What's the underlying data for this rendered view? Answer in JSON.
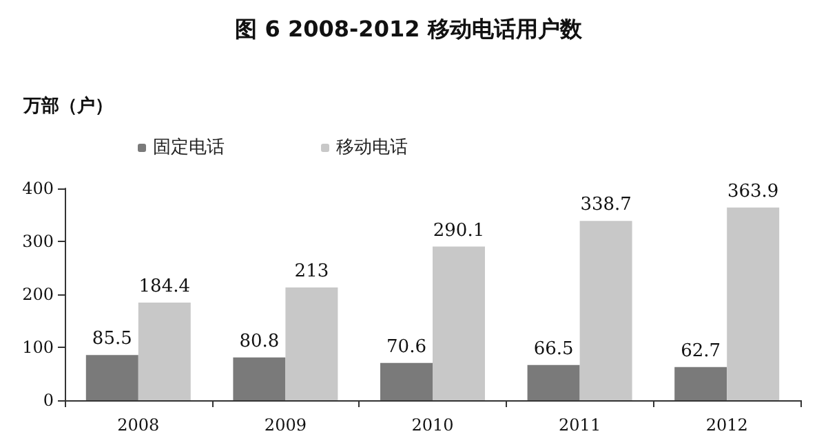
{
  "chart_data": {
    "type": "bar",
    "title": "图 6 2008-2012 移动电话用户数",
    "ylabel": "万部（户）",
    "categories": [
      "2008",
      "2009",
      "2010",
      "2011",
      "2012"
    ],
    "series": [
      {
        "name": "固定电话",
        "color": "#7a7a7a",
        "values": [
          85.5,
          80.8,
          70.6,
          66.5,
          62.7
        ]
      },
      {
        "name": "移动电话",
        "color": "#c8c8c8",
        "values": [
          184.4,
          213,
          290.1,
          338.7,
          363.9
        ]
      }
    ],
    "ylim": [
      0,
      400
    ],
    "yticks": [
      0,
      100,
      200,
      300,
      400
    ],
    "grid": false,
    "legend": "top",
    "data_labels": true
  }
}
